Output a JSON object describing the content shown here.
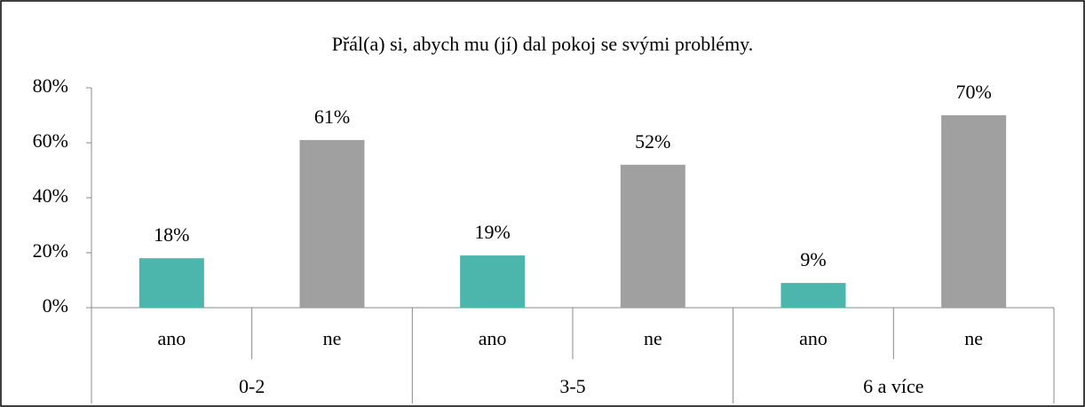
{
  "chart_data": {
    "type": "bar",
    "title": "Přál(a) si, abych mu (jí) dal pokoj se svými problémy.",
    "groups": [
      "0-2",
      "3-5",
      "6 a více"
    ],
    "categories": [
      "ano",
      "ne",
      "ano",
      "ne",
      "ano",
      "ne"
    ],
    "values": [
      18,
      61,
      19,
      52,
      9,
      70
    ],
    "value_labels": [
      "18%",
      "61%",
      "19%",
      "52%",
      "9%",
      "70%"
    ],
    "colors": [
      "#4db6ac",
      "#a0a0a0",
      "#4db6ac",
      "#a0a0a0",
      "#4db6ac",
      "#a0a0a0"
    ],
    "ylim": [
      0,
      80
    ],
    "yticks": [
      {
        "value": 0,
        "label": "0%"
      },
      {
        "value": 20,
        "label": "20%"
      },
      {
        "value": 40,
        "label": "40%"
      },
      {
        "value": 60,
        "label": "60%"
      },
      {
        "value": 80,
        "label": "80%"
      }
    ]
  }
}
